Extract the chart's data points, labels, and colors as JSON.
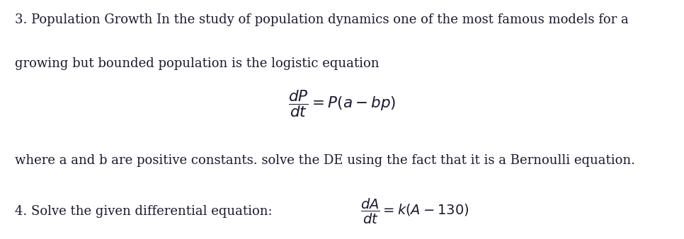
{
  "background_color": "#ffffff",
  "text_color": "#1a1a2e",
  "figsize": [
    9.66,
    3.38
  ],
  "dpi": 100,
  "p3_line1": "3. Population Growth In the study of population dynamics one of the most famous models for a",
  "p3_line2": "growing but bounded population is the logistic equation",
  "p3_eq": "$\\dfrac{dP}{dt} = P(a - bp)$",
  "p3_line3": "where a and b are positive constants. solve the DE using the fact that it is a Bernoulli equation.",
  "p4_label": "4. Solve the given differential equation:  ",
  "p4_eq": "$\\dfrac{dA}{dt} = k(A - 130)$",
  "font_family": "serif",
  "font_size_body": 13.0,
  "font_size_eq": 15.5
}
